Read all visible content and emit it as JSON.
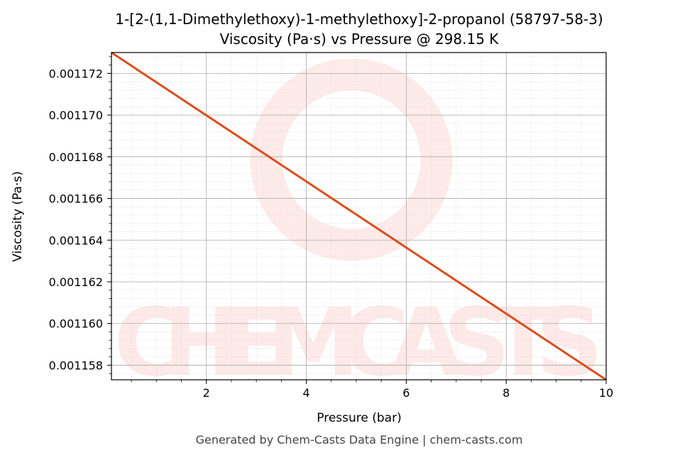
{
  "chart_data": {
    "type": "line",
    "title": "1-[2-(1,1-Dimethylethoxy)-1-methylethoxy]-2-propanol (58797-58-3)",
    "subtitle": "Viscosity (Pa·s) vs Pressure @ 298.15 K",
    "xlabel": "Pressure (bar)",
    "ylabel": "Viscosity (Pa·s)",
    "xlim": [
      0.1,
      10
    ],
    "ylim": [
      0.0011573,
      0.001173
    ],
    "xticks": [
      2,
      4,
      6,
      8,
      10
    ],
    "xtick_labels": [
      "2",
      "4",
      "6",
      "8",
      "10"
    ],
    "yticks": [
      0.001158,
      0.00116,
      0.001162,
      0.001164,
      0.001166,
      0.001168,
      0.00117,
      0.001172
    ],
    "ytick_labels": [
      "0.001158",
      "0.001160",
      "0.001162",
      "0.001164",
      "0.001166",
      "0.001168",
      "0.001170",
      "0.001172"
    ],
    "grid": true,
    "series": [
      {
        "name": "Viscosity",
        "color": "#d94e1f",
        "x": [
          0.1,
          10
        ],
        "y": [
          0.001173,
          0.0011573
        ]
      }
    ],
    "watermark": "CHEMCASTS",
    "footer": "Generated by Chem-Casts Data Engine | chem-casts.com"
  }
}
